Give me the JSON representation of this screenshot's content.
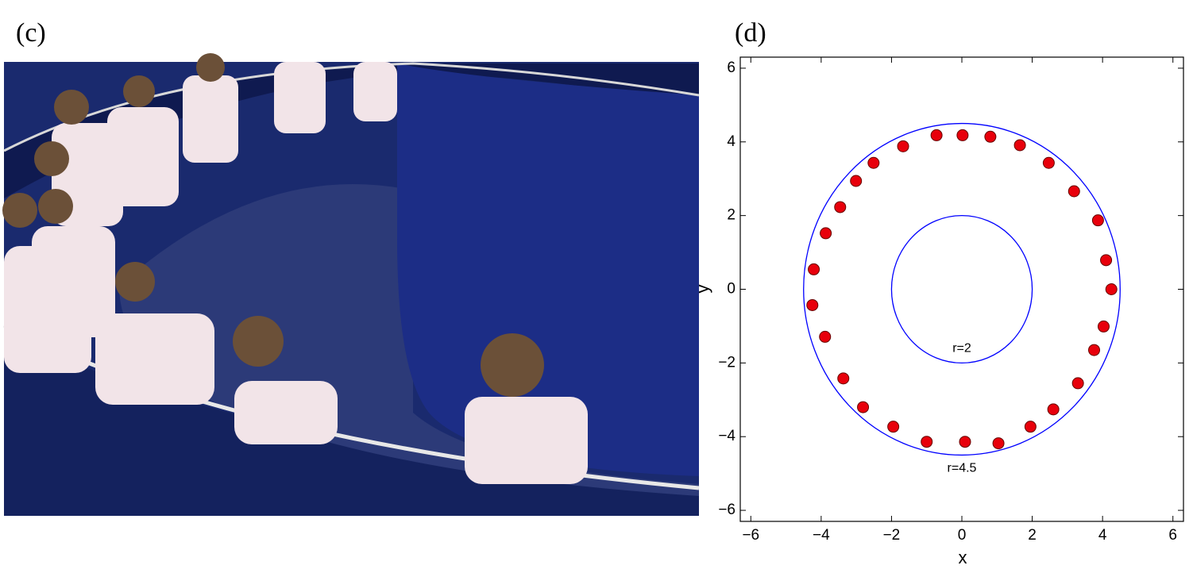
{
  "panel_c": {
    "label": "(c)"
  },
  "chart_data": {
    "type": "scatter",
    "panel_label": "(d)",
    "x_label": "x",
    "y_label": "y",
    "xlim": [
      -6.3,
      6.3
    ],
    "ylim": [
      -6.3,
      6.3
    ],
    "xticks": [
      {
        "value": -6,
        "label": "−6"
      },
      {
        "value": -4,
        "label": "−4"
      },
      {
        "value": -2,
        "label": "−2"
      },
      0,
      2,
      4,
      6
    ],
    "yticks": [
      {
        "value": -6,
        "label": "−6"
      },
      {
        "value": -4,
        "label": "−4"
      },
      {
        "value": -2,
        "label": "−2"
      },
      0,
      2,
      4,
      6
    ],
    "circles": [
      {
        "r": 2,
        "label": "r=2",
        "color": "#0000ff"
      },
      {
        "r": 4.5,
        "label": "r=4.5",
        "color": "#0000ff"
      }
    ],
    "color": "#e8000b",
    "x": [
      0.02,
      -0.72,
      0.81,
      -1.67,
      1.65,
      -2.51,
      2.47,
      -3.01,
      3.19,
      -3.46,
      3.87,
      -3.87,
      4.1,
      -4.21,
      4.25,
      -4.25,
      4.03,
      -3.89,
      3.76,
      -3.37,
      3.3,
      -2.81,
      2.6,
      -1.95,
      1.95,
      -1.0,
      0.09,
      1.04
    ],
    "y": [
      4.18,
      4.18,
      4.14,
      3.88,
      3.91,
      3.43,
      3.43,
      2.94,
      2.66,
      2.23,
      1.87,
      1.52,
      0.79,
      0.54,
      0,
      -0.43,
      -1.01,
      -1.29,
      -1.65,
      -2.42,
      -2.55,
      -3.2,
      -3.26,
      -3.73,
      -3.73,
      -4.14,
      -4.14,
      -4.18
    ]
  }
}
